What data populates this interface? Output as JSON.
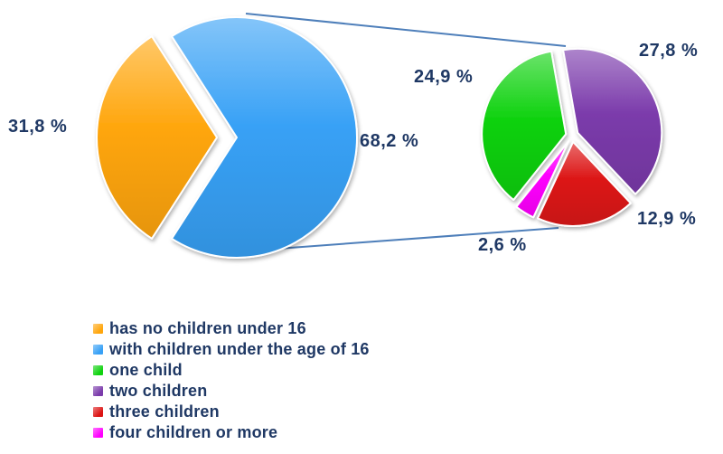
{
  "chart_data": {
    "type": "pie",
    "subtype": "pie-of-pie",
    "title": "",
    "main_pie": {
      "slices": [
        {
          "label": "has no children under 16",
          "value": 31.8,
          "display": "31,8 %",
          "color": "#FFA60D",
          "exploded": true
        },
        {
          "label": "with children under the age of 16",
          "value": 68.2,
          "display": "68,2 %",
          "color": "#38A1F6",
          "exploded": false
        }
      ]
    },
    "secondary_pie": {
      "represents": "with children under the age of 16",
      "slices": [
        {
          "label": "one child",
          "value": 24.9,
          "display": "24,9 %",
          "color": "#10D210"
        },
        {
          "label": "two children",
          "value": 27.8,
          "display": "27,8 %",
          "color": "#7B3BAB"
        },
        {
          "label": "three children",
          "value": 12.9,
          "display": "12,9 %",
          "color": "#DC1414"
        },
        {
          "label": "four children or more",
          "value": 2.6,
          "display": "2,6 %",
          "color": "#FF00FF"
        }
      ]
    },
    "legend_position": "bottom-left",
    "grid": false
  },
  "labels": {
    "main_left": "31,8 %",
    "main_right": "68,2 %",
    "sec_green": "24,9 %",
    "sec_purple": "27,8 %",
    "sec_red": "12,9 %",
    "sec_magenta": "2,6 %"
  },
  "legend": {
    "items": [
      {
        "label": "has no children under 16",
        "color": "#FFA60D"
      },
      {
        "label": "with children under the age of 16",
        "color": "#38A1F6"
      },
      {
        "label": "one child",
        "color": "#10D210"
      },
      {
        "label": "two children",
        "color": "#7B3BAB"
      },
      {
        "label": "three children",
        "color": "#DC1414"
      },
      {
        "label": "four children or more",
        "color": "#FF00FF"
      }
    ]
  },
  "colors": {
    "text": "#1F3864",
    "connector": "#4E7FBA",
    "background": "#FFFFFF"
  }
}
